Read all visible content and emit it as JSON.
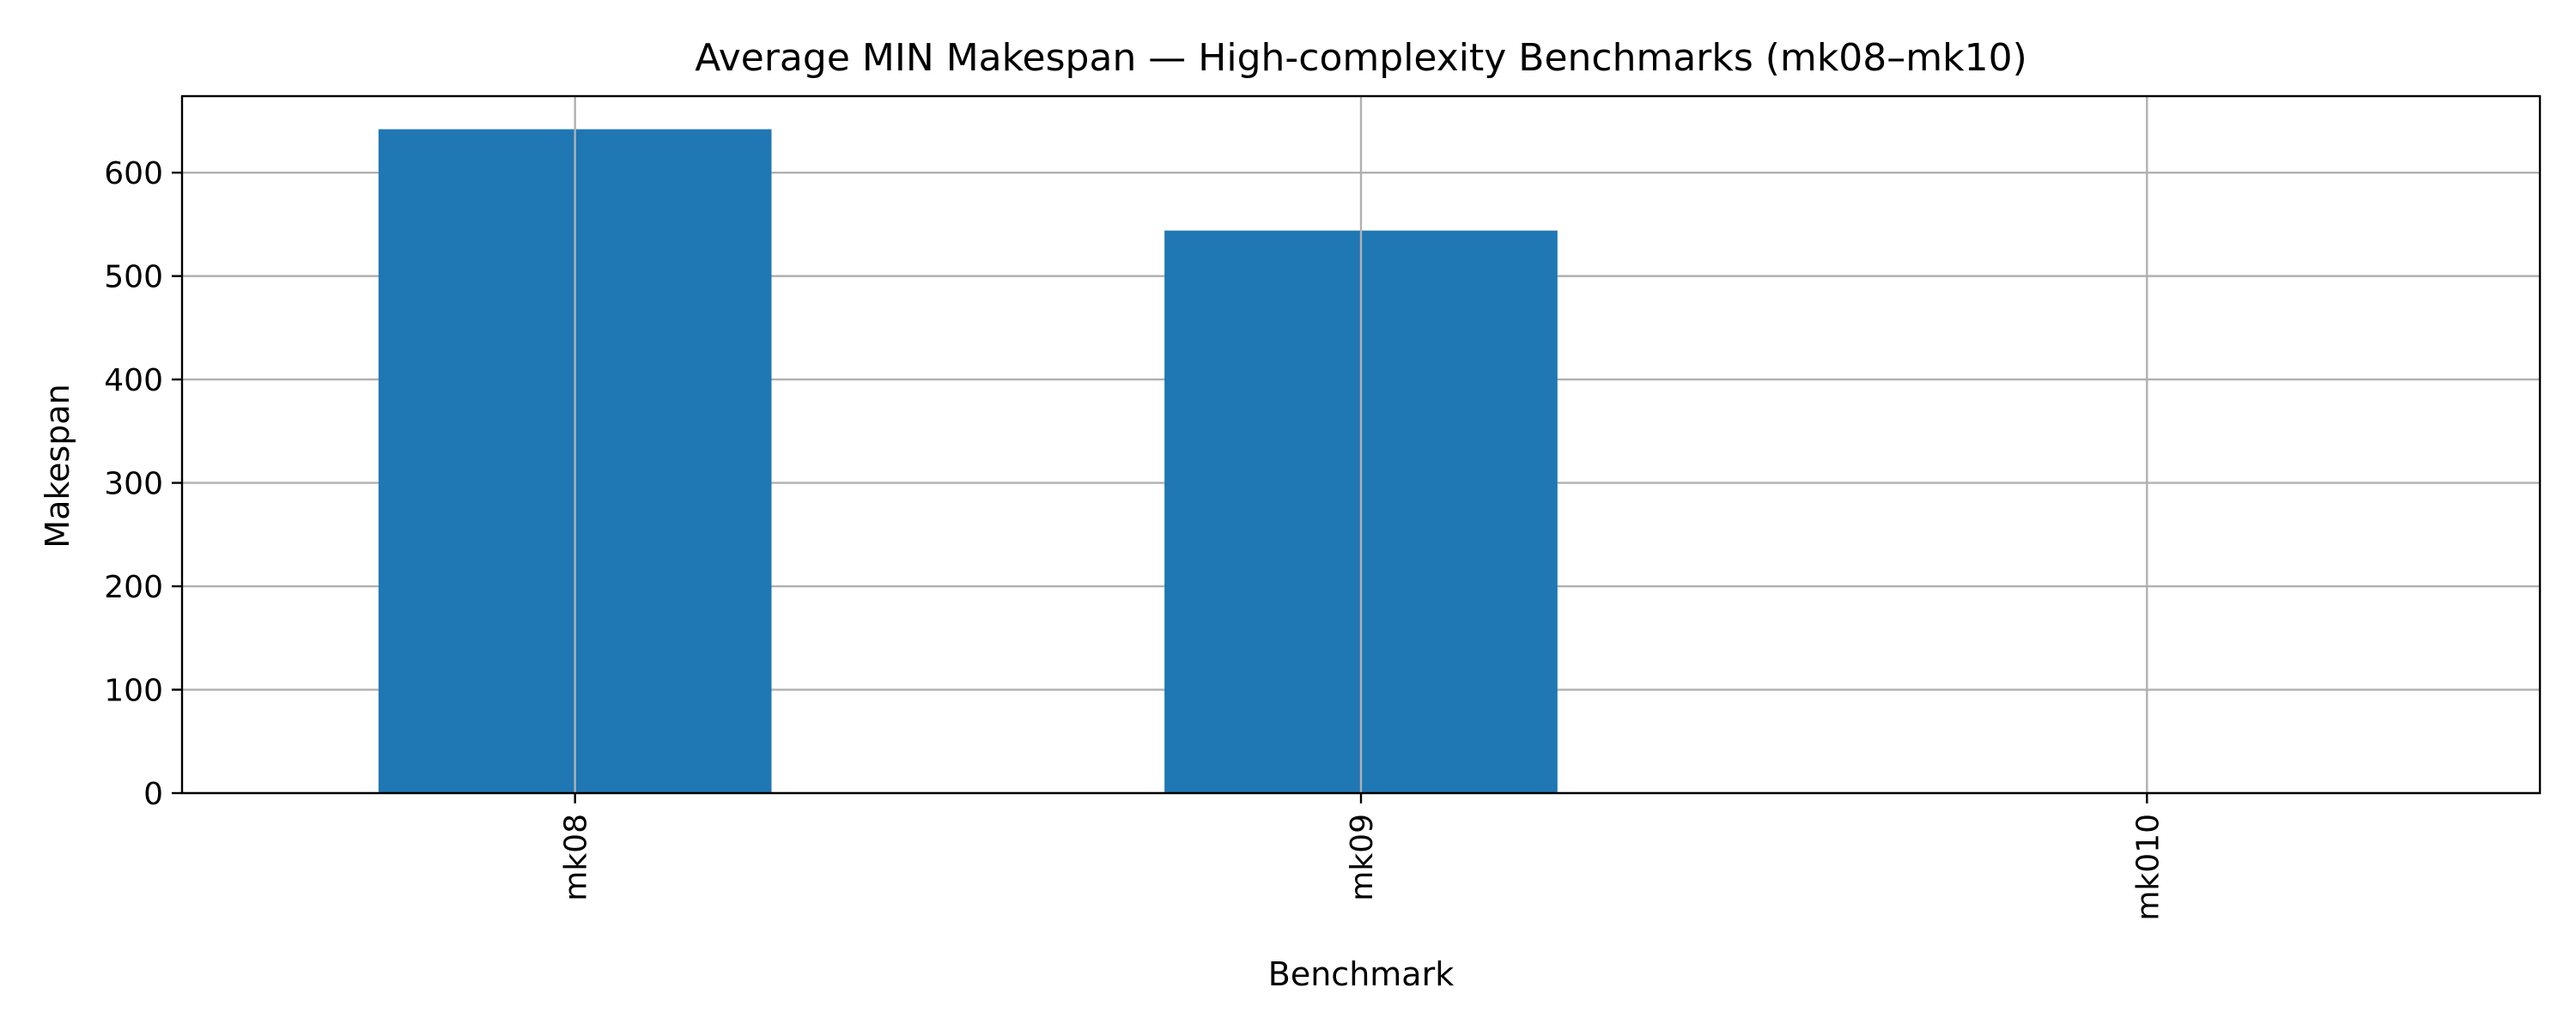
{
  "chart_data": {
    "type": "bar",
    "title": "Average MIN Makespan — High-complexity Benchmarks (mk08–mk10)",
    "xlabel": "Benchmark",
    "ylabel": "Makespan",
    "categories": [
      "mk08",
      "mk09",
      "mk010"
    ],
    "values": [
      642,
      544,
      0
    ],
    "ylim": [
      0,
      674
    ],
    "yticks": [
      0,
      100,
      200,
      300,
      400,
      500,
      600
    ],
    "grid": true,
    "bar_color": "#1f77b4",
    "legend": "none"
  }
}
